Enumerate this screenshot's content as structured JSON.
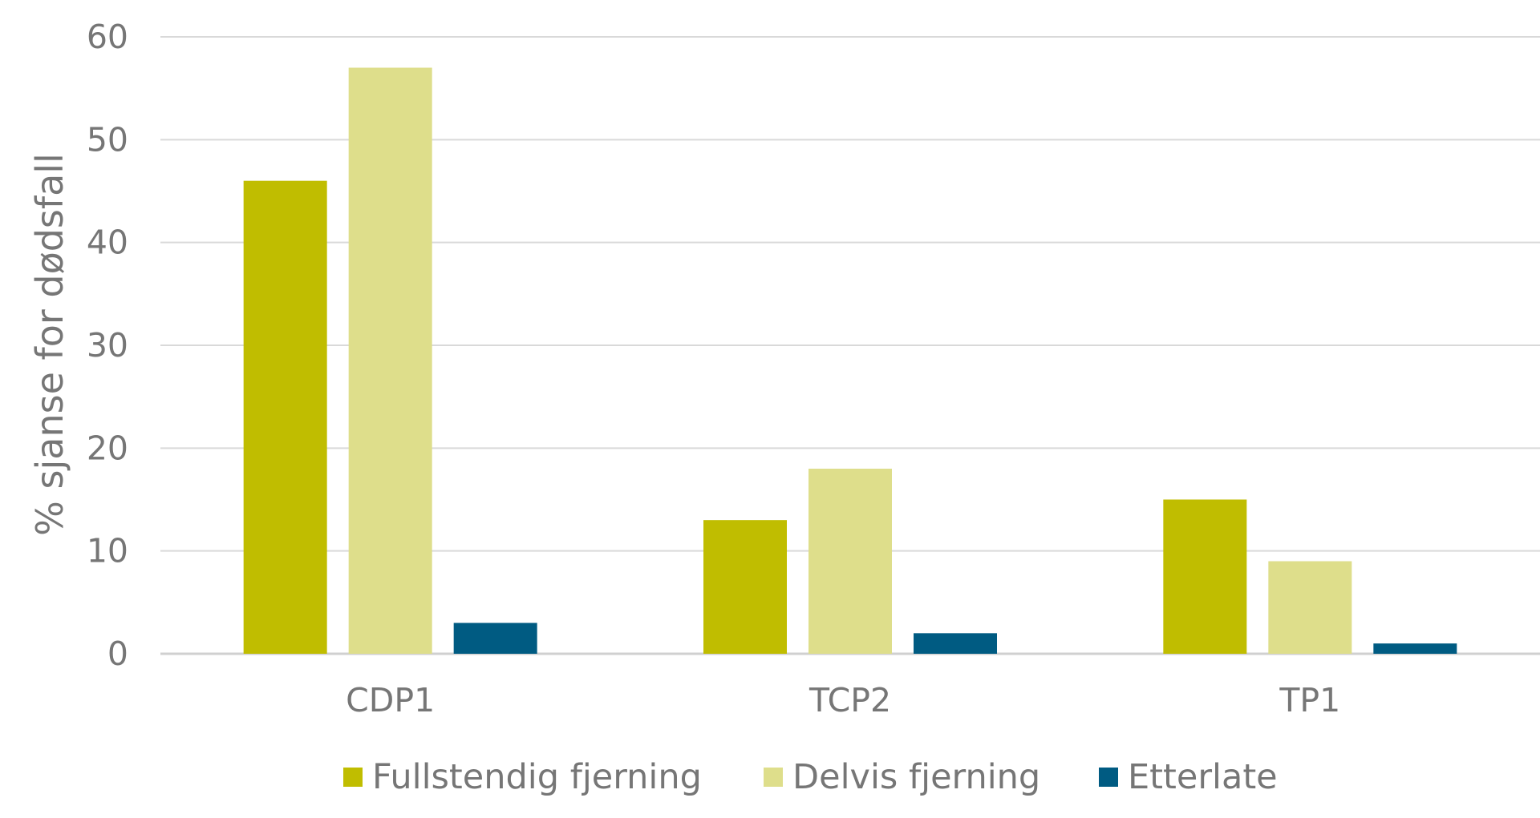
{
  "chart_data": {
    "type": "bar",
    "title": "",
    "xlabel": "",
    "ylabel": "% sjanse for dødsfall",
    "ylim": [
      0,
      60
    ],
    "yticks": [
      "0",
      "10",
      "20",
      "30",
      "40",
      "50",
      "60"
    ],
    "yticks_values": [
      0,
      10,
      20,
      30,
      40,
      50,
      60
    ],
    "grid": true,
    "legend_position": "bottom",
    "categories": [
      "CDP1",
      "TCP2",
      "TP1"
    ],
    "series": [
      {
        "name": "Fullstendig fjerning",
        "color": "#c0bd00",
        "values": [
          46,
          13,
          15
        ]
      },
      {
        "name": "Delvis fjerning",
        "color": "#dede8b",
        "values": [
          57,
          18,
          9
        ]
      },
      {
        "name": "Etterlate",
        "color": "#005b82",
        "values": [
          3,
          2,
          1
        ]
      }
    ]
  }
}
